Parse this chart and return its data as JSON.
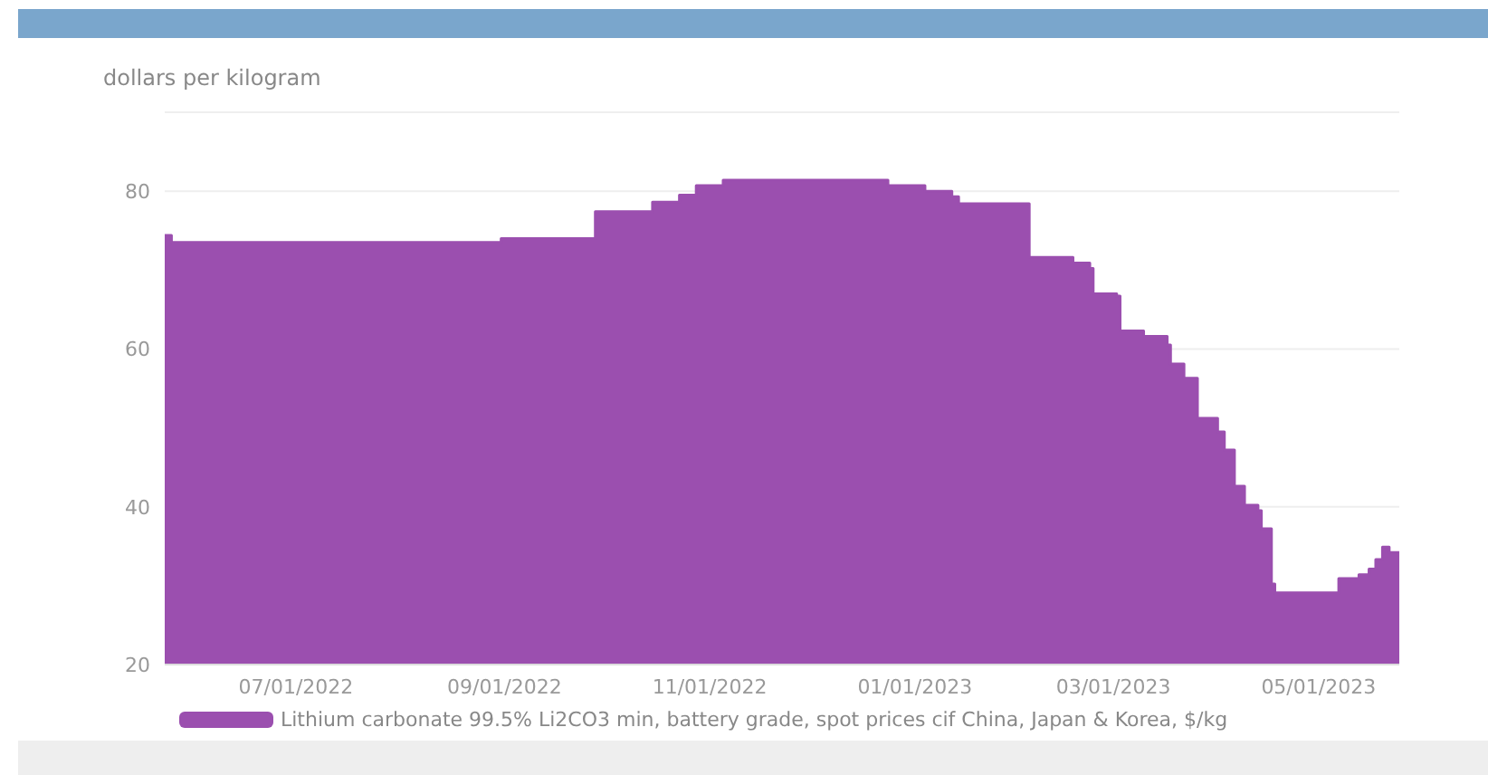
{
  "chart_data": {
    "type": "area",
    "ylabel": "dollars per kilogram",
    "x": [
      "2022-05-23",
      "2022-05-25",
      "2022-05-25",
      "2022-08-31",
      "2022-08-31",
      "2022-09-28",
      "2022-09-28",
      "2022-10-15",
      "2022-10-15",
      "2022-10-23",
      "2022-10-23",
      "2022-10-28",
      "2022-10-28",
      "2022-11-05",
      "2022-11-05",
      "2022-12-24",
      "2022-12-24",
      "2023-01-04",
      "2023-01-04",
      "2023-01-12",
      "2023-01-12",
      "2023-01-14",
      "2023-01-14",
      "2023-02-04",
      "2023-02-04",
      "2023-02-17",
      "2023-02-17",
      "2023-02-22",
      "2023-02-22",
      "2023-02-23",
      "2023-02-23",
      "2023-03-02",
      "2023-03-02",
      "2023-03-03",
      "2023-03-03",
      "2023-03-10",
      "2023-03-10",
      "2023-03-17",
      "2023-03-17",
      "2023-03-18",
      "2023-03-18",
      "2023-03-22",
      "2023-03-22",
      "2023-03-26",
      "2023-03-26",
      "2023-04-01",
      "2023-04-01",
      "2023-04-03",
      "2023-04-03",
      "2023-04-06",
      "2023-04-06",
      "2023-04-09",
      "2023-04-09",
      "2023-04-13",
      "2023-04-13",
      "2023-04-14",
      "2023-04-14",
      "2023-04-17",
      "2023-04-17",
      "2023-04-18",
      "2023-04-18",
      "2023-05-07",
      "2023-05-07",
      "2023-05-13",
      "2023-05-13",
      "2023-05-16",
      "2023-05-16",
      "2023-05-18",
      "2023-05-18",
      "2023-05-20",
      "2023-05-20",
      "2023-05-22",
      "2023-05-22",
      "2023-05-25"
    ],
    "series": [
      {
        "name": "Lithium carbonate 99.5% Li2CO3 min, battery grade, spot prices cif China, Japan & Korea, $/kg",
        "color": "#9b4faf",
        "values": [
          74.4,
          74.4,
          73.5,
          73.5,
          74.0,
          74.0,
          77.4,
          77.4,
          78.6,
          78.6,
          79.5,
          79.5,
          80.7,
          80.7,
          81.4,
          81.4,
          80.7,
          80.7,
          80.0,
          80.0,
          79.3,
          79.3,
          78.4,
          78.4,
          71.6,
          71.6,
          70.9,
          70.9,
          70.2,
          70.2,
          67.0,
          67.0,
          66.7,
          66.7,
          62.3,
          62.3,
          61.6,
          61.6,
          60.5,
          60.5,
          58.1,
          58.1,
          56.3,
          56.3,
          51.2,
          51.2,
          49.5,
          49.5,
          47.2,
          47.2,
          42.6,
          42.6,
          40.2,
          40.2,
          39.5,
          39.5,
          37.2,
          37.2,
          30.2,
          30.2,
          29.1,
          29.1,
          30.9,
          30.9,
          31.4,
          31.4,
          32.1,
          32.1,
          33.3,
          33.3,
          34.9,
          34.9,
          34.2,
          34.2
        ]
      }
    ],
    "xlim": [
      "2022-05-23",
      "2023-05-25"
    ],
    "xticks": [
      {
        "value": "2022-07-01",
        "label": "07/01/2022"
      },
      {
        "value": "2022-09-01",
        "label": "09/01/2022"
      },
      {
        "value": "2022-11-01",
        "label": "11/01/2022"
      },
      {
        "value": "2023-01-01",
        "label": "01/01/2023"
      },
      {
        "value": "2023-03-01",
        "label": "03/01/2023"
      },
      {
        "value": "2023-05-01",
        "label": "05/01/2023"
      }
    ],
    "ylim": [
      20,
      90
    ],
    "yticks": [
      20,
      40,
      60,
      80,
      {
        "value": 90,
        "label": null
      }
    ],
    "grid": "y",
    "legend": "bottom"
  }
}
